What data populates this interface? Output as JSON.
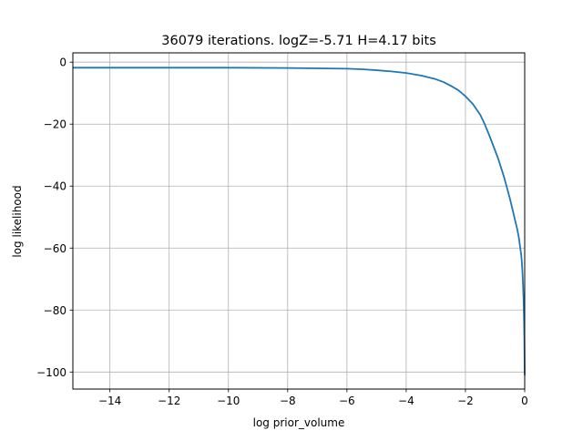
{
  "chart_data": {
    "type": "line",
    "title": "36079 iterations. logZ=-5.71 H=4.17 bits",
    "xlabel": "log prior_volume",
    "ylabel": "log likelihood",
    "xlim": [
      -15.25,
      0
    ],
    "ylim": [
      -105.5,
      3
    ],
    "grid": true,
    "xticks": [
      -14,
      -12,
      -10,
      -8,
      -6,
      -4,
      -2,
      0
    ],
    "yticks": [
      0,
      -20,
      -40,
      -60,
      -80,
      -100
    ],
    "series": [
      {
        "color": "#1f77b4",
        "x": [
          -15.25,
          -14,
          -12,
          -10,
          -8,
          -7,
          -6,
          -5.5,
          -5,
          -4.5,
          -4,
          -3.5,
          -3,
          -2.75,
          -2.5,
          -2.25,
          -2,
          -1.75,
          -1.5,
          -1.35,
          -1.2,
          -1.1,
          -1.0,
          -0.9,
          -0.8,
          -0.7,
          -0.6,
          -0.5,
          -0.4,
          -0.3,
          -0.25,
          -0.2,
          -0.15,
          -0.12,
          -0.1,
          -0.08,
          -0.06,
          -0.04,
          -0.02,
          -0.01,
          0
        ],
        "y": [
          -1.8,
          -1.8,
          -1.8,
          -1.8,
          -1.9,
          -2.0,
          -2.1,
          -2.3,
          -2.6,
          -3.0,
          -3.5,
          -4.3,
          -5.5,
          -6.4,
          -7.6,
          -9.0,
          -11.0,
          -13.5,
          -17.0,
          -20.0,
          -23.5,
          -26.0,
          -28.5,
          -31.0,
          -34.0,
          -37.0,
          -40.5,
          -44.0,
          -48.0,
          -52.0,
          -54.0,
          -56.5,
          -60.0,
          -62.0,
          -64.0,
          -67.0,
          -71.0,
          -76.0,
          -84.0,
          -90.0,
          -101.0
        ]
      }
    ]
  }
}
